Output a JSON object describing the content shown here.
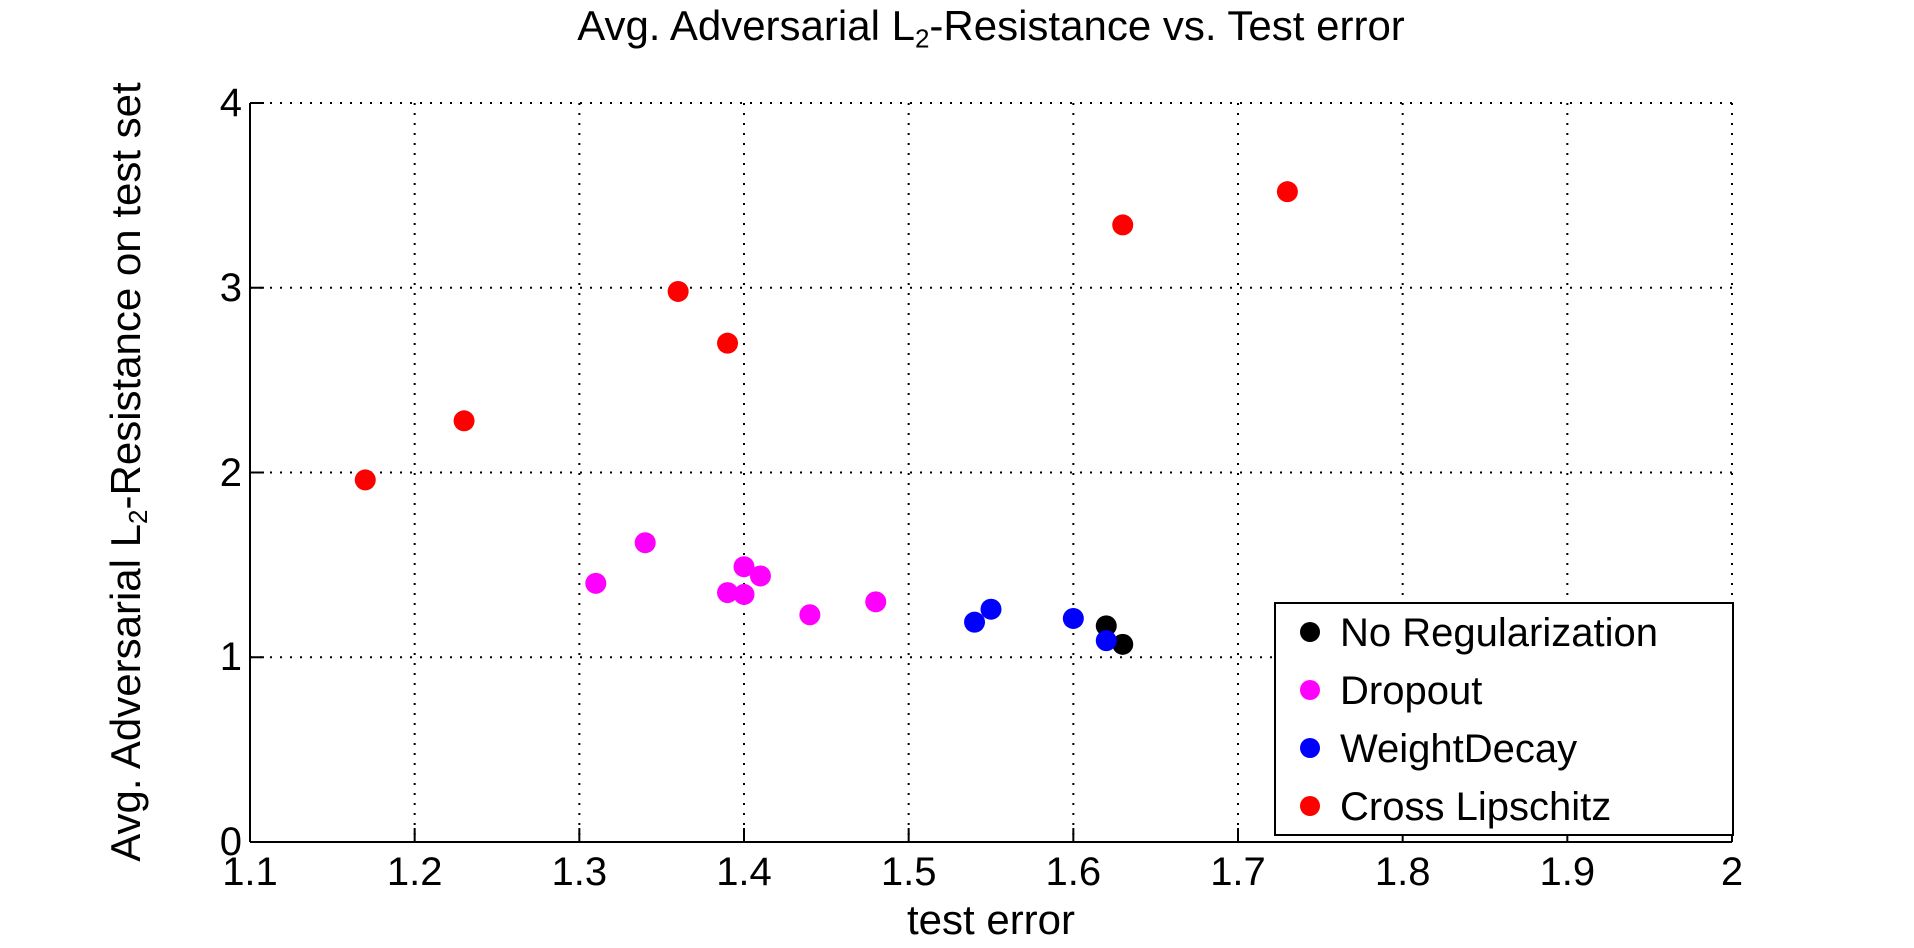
{
  "chart_data": {
    "type": "scatter",
    "title": {
      "prefix": "Avg. Adversarial L",
      "sub": "2",
      "suffix": "-Resistance vs. Test error"
    },
    "xlabel": "test error",
    "ylabel": {
      "prefix": "Avg. Adversarial L",
      "sub": "2",
      "suffix": "-Resistance on test set"
    },
    "xlim": [
      1.1,
      2
    ],
    "ylim": [
      0,
      4
    ],
    "xticks": [
      1.1,
      1.2,
      1.3,
      1.4,
      1.5,
      1.6,
      1.7,
      1.8,
      1.9,
      2
    ],
    "xtick_labels": [
      "1.1",
      "1.2",
      "1.3",
      "1.4",
      "1.5",
      "1.6",
      "1.7",
      "1.8",
      "1.9",
      "2"
    ],
    "yticks": [
      0,
      1,
      2,
      3,
      4
    ],
    "ytick_labels": [
      "0",
      "1",
      "2",
      "3",
      "4"
    ],
    "grid": "dotted",
    "legend_position": "bottom-right-inside",
    "series": [
      {
        "name": "No Regularization",
        "color": "#000000",
        "points": [
          [
            1.62,
            1.17
          ],
          [
            1.63,
            1.07
          ]
        ]
      },
      {
        "name": "Dropout",
        "color": "#ff00ff",
        "points": [
          [
            1.31,
            1.4
          ],
          [
            1.34,
            1.62
          ],
          [
            1.39,
            1.35
          ],
          [
            1.4,
            1.34
          ],
          [
            1.4,
            1.49
          ],
          [
            1.41,
            1.44
          ],
          [
            1.44,
            1.23
          ],
          [
            1.48,
            1.3
          ]
        ]
      },
      {
        "name": "WeightDecay",
        "color": "#0000ff",
        "points": [
          [
            1.54,
            1.19
          ],
          [
            1.55,
            1.26
          ],
          [
            1.6,
            1.21
          ],
          [
            1.62,
            1.09
          ]
        ]
      },
      {
        "name": "Cross Lipschitz",
        "color": "#ff0000",
        "points": [
          [
            1.17,
            1.96
          ],
          [
            1.23,
            2.28
          ],
          [
            1.36,
            2.98
          ],
          [
            1.39,
            2.7
          ],
          [
            1.63,
            3.34
          ],
          [
            1.73,
            3.52
          ]
        ]
      }
    ]
  }
}
